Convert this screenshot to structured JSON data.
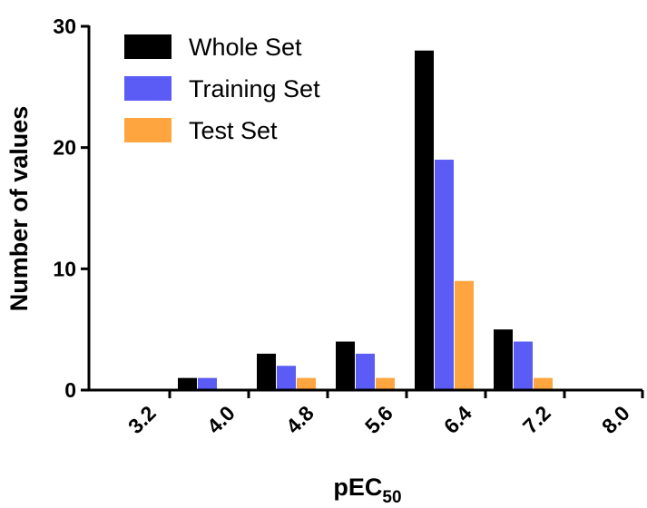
{
  "chart_data": {
    "type": "bar",
    "title": "",
    "xlabel": "pEC",
    "xlabel_subscript": "50",
    "ylabel": "Number of values",
    "ylim": [
      0,
      30
    ],
    "yticks": [
      "0",
      "10",
      "20",
      "30"
    ],
    "categories": [
      "3.2",
      "4.0",
      "4.8",
      "5.6",
      "6.4",
      "7.2",
      "8.0"
    ],
    "series": [
      {
        "name": "Whole Set",
        "color": "#000000",
        "values": [
          0,
          1,
          3,
          4,
          28,
          5,
          0
        ]
      },
      {
        "name": "Training Set",
        "color": "#5b5bf5",
        "values": [
          0,
          1,
          2,
          3,
          19,
          4,
          0
        ]
      },
      {
        "name": "Test Set",
        "color": "#ffa53f",
        "values": [
          0,
          0,
          1,
          1,
          9,
          1,
          0
        ]
      }
    ],
    "legend_position": "top-left",
    "grid": false
  }
}
